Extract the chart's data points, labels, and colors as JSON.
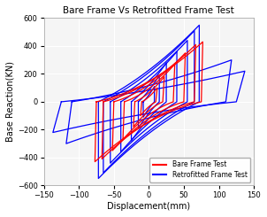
{
  "title": "Bare Frame Vs Retrofitted Frame Test",
  "xlabel": "Displacement(mm)",
  "ylabel": "Base Reaction(KN)",
  "xlim": [
    -150,
    150
  ],
  "ylim": [
    -600,
    600
  ],
  "xticks": [
    -150,
    -100,
    -50,
    0,
    50,
    100,
    150
  ],
  "yticks": [
    -600,
    -400,
    -200,
    0,
    200,
    400,
    600
  ],
  "bare_color": "#ff0000",
  "retro_color": "#0000ff",
  "legend_labels": [
    "Bare Frame Test",
    "Retrofitted Frame Test"
  ],
  "bg_color": "#f5f5f5",
  "grid_color": "white",
  "linewidth": 0.9,
  "bare_loops": [
    {
      "max_d": 10,
      "max_f": 100,
      "pinch": 0.55
    },
    {
      "max_d": 20,
      "max_f": 180,
      "pinch": 0.5
    },
    {
      "max_d": 35,
      "max_f": 270,
      "pinch": 0.45
    },
    {
      "max_d": 50,
      "max_f": 350,
      "pinch": 0.42
    },
    {
      "max_d": 65,
      "max_f": 410,
      "pinch": 0.4
    },
    {
      "max_d": 75,
      "max_f": 430,
      "pinch": 0.38
    }
  ],
  "retro_loops": [
    {
      "max_d": 8,
      "max_f": 110,
      "pinch": 0.75
    },
    {
      "max_d": 15,
      "max_f": 190,
      "pinch": 0.72
    },
    {
      "max_d": 25,
      "max_f": 280,
      "pinch": 0.7
    },
    {
      "max_d": 40,
      "max_f": 360,
      "pinch": 0.68
    },
    {
      "max_d": 55,
      "max_f": 440,
      "pinch": 0.66
    },
    {
      "max_d": 65,
      "max_f": 510,
      "pinch": 0.65
    },
    {
      "max_d": 72,
      "max_f": 550,
      "pinch": 0.65
    },
    {
      "max_d": 110,
      "max_f": 300,
      "pinch": 0.6
    },
    {
      "max_d": 125,
      "max_f": 220,
      "pinch": 0.58
    }
  ]
}
